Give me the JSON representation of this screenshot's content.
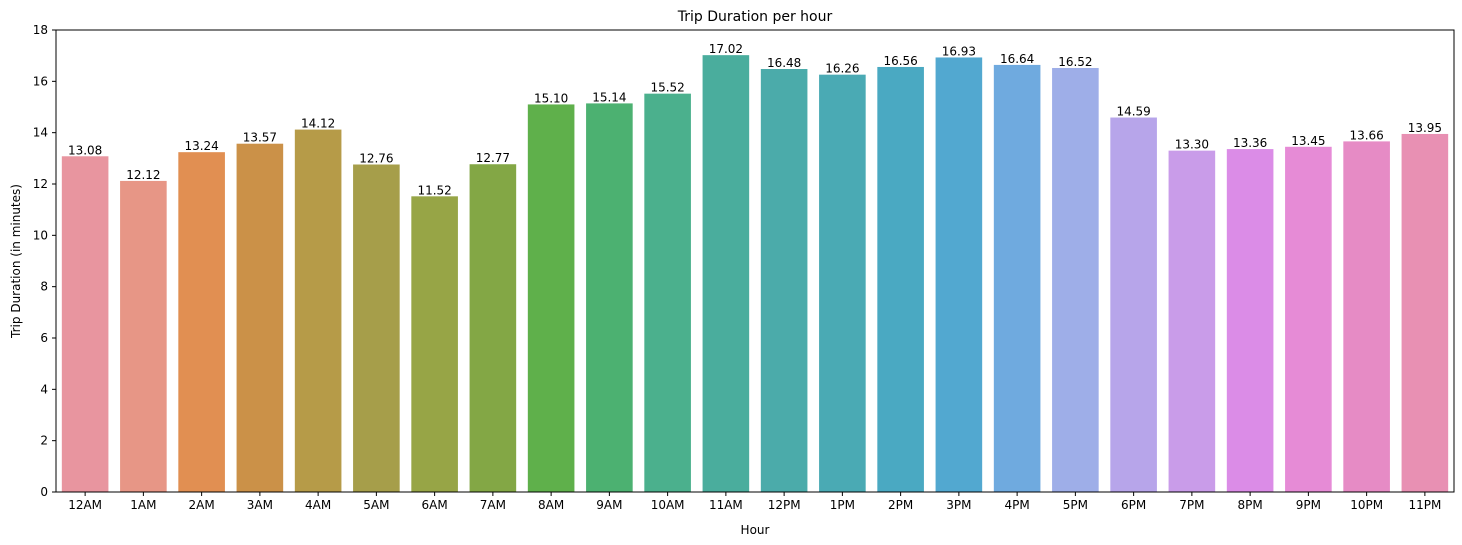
{
  "chart_data": {
    "type": "bar",
    "title": "Trip Duration per hour",
    "xlabel": "Hour",
    "ylabel": "Trip Duration (in minutes)",
    "ylim": [
      0,
      18
    ],
    "yticks": [
      0,
      2,
      4,
      6,
      8,
      10,
      12,
      14,
      16,
      18
    ],
    "grid": false,
    "categories": [
      "12AM",
      "1AM",
      "2AM",
      "3AM",
      "4AM",
      "5AM",
      "6AM",
      "7AM",
      "8AM",
      "9AM",
      "10AM",
      "11AM",
      "12PM",
      "1PM",
      "2PM",
      "3PM",
      "4PM",
      "5PM",
      "6PM",
      "7PM",
      "8PM",
      "9PM",
      "10PM",
      "11PM"
    ],
    "values": [
      13.08,
      12.12,
      13.24,
      13.57,
      14.12,
      12.76,
      11.52,
      12.77,
      15.1,
      15.14,
      15.52,
      17.02,
      16.48,
      16.26,
      16.56,
      16.93,
      16.64,
      16.52,
      14.59,
      13.3,
      13.36,
      13.45,
      13.66,
      13.95
    ],
    "value_labels": [
      "13.08",
      "12.12",
      "13.24",
      "13.57",
      "14.12",
      "12.76",
      "11.52",
      "12.77",
      "15.10",
      "15.14",
      "15.52",
      "17.02",
      "16.48",
      "16.26",
      "16.56",
      "16.93",
      "16.64",
      "16.52",
      "14.59",
      "13.30",
      "13.36",
      "13.45",
      "13.66",
      "13.95"
    ],
    "colors": [
      "#e8959f",
      "#e79686",
      "#e18f52",
      "#cb9148",
      "#b69b48",
      "#a69e4a",
      "#97a546",
      "#83a745",
      "#5fb04b",
      "#4cb171",
      "#4bb08d",
      "#4aad9d",
      "#4babaa",
      "#4aaab4",
      "#4aa9c2",
      "#52a8d0",
      "#6faadf",
      "#9eaee8",
      "#b7a5ea",
      "#c99ce9",
      "#db8ce7",
      "#e68bd6",
      "#e68bc5",
      "#e890b3"
    ]
  }
}
